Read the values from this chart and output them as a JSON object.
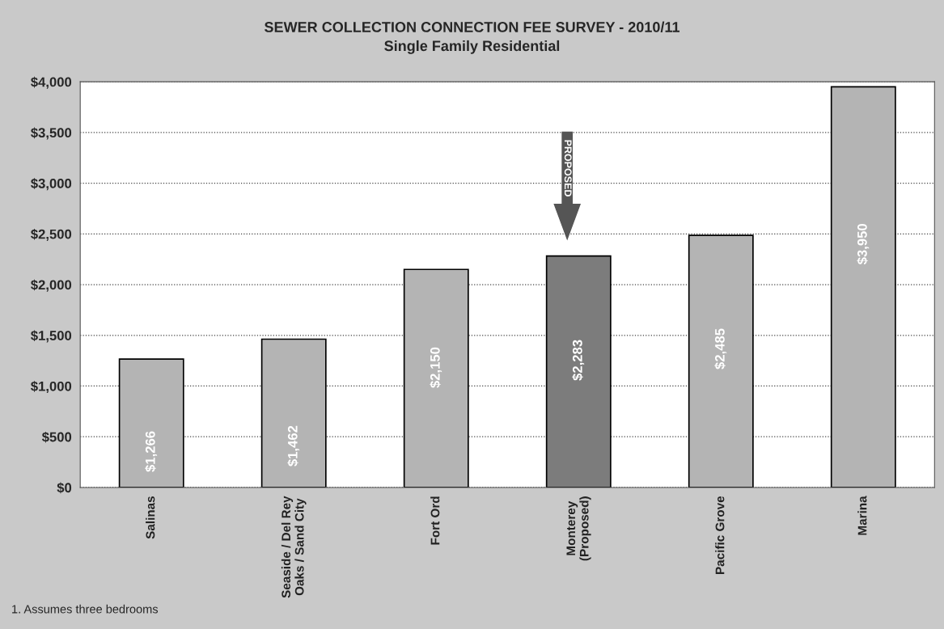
{
  "chart_data": {
    "type": "bar",
    "title": "SEWER COLLECTION CONNECTION FEE SURVEY - 2010/11",
    "subtitle": "Single Family Residential",
    "categories": [
      "Salinas",
      "Seaside / Del Rey\nOaks / Sand City",
      "Fort Ord",
      "Monterey\n(Proposed)",
      "Pacific Grove",
      "Marina"
    ],
    "values": [
      1266,
      1462,
      2150,
      2283,
      2485,
      3950
    ],
    "colors": [
      "#b4b4b4",
      "#b4b4b4",
      "#b4b4b4",
      "#7c7c7c",
      "#b4b4b4",
      "#b4b4b4"
    ],
    "value_labels": [
      "$1,266",
      "$1,462",
      "$2,150",
      "$2,283",
      "$2,485",
      "$3,950"
    ],
    "ylim": [
      0,
      4000
    ],
    "yticks": [
      {
        "value": 0,
        "label": "$0"
      },
      {
        "value": 500,
        "label": "$500"
      },
      {
        "value": 1000,
        "label": "$1,000"
      },
      {
        "value": 1500,
        "label": "$1,500"
      },
      {
        "value": 2000,
        "label": "$2,000"
      },
      {
        "value": 2500,
        "label": "$2,500"
      },
      {
        "value": 3000,
        "label": "$3,000"
      },
      {
        "value": 3500,
        "label": "$3,500"
      },
      {
        "value": 4000,
        "label": "$4,000"
      }
    ],
    "grid": "y",
    "annotations": [
      "PROPOSED",
      "1. Assumes three bedrooms"
    ]
  }
}
